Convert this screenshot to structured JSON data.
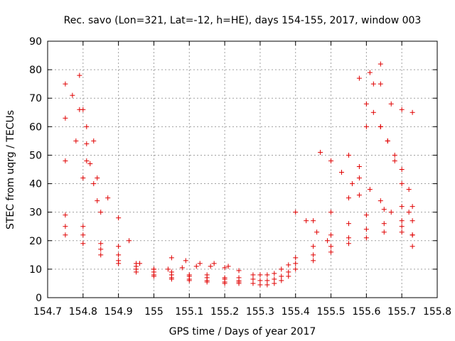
{
  "chart_data": {
    "type": "scatter",
    "title": "Rec. savo (Lon=321, Lat=-12, h=HE), days 154-155, 2017, window 003",
    "xlabel": "GPS time / Days of year 2017",
    "ylabel": "STEC from uqrg / TECUs",
    "xlim": [
      154.7,
      155.8
    ],
    "ylim": [
      0,
      90
    ],
    "xticks": [
      "154.7",
      "154.8",
      "154.9",
      "155",
      "155.1",
      "155.2",
      "155.3",
      "155.4",
      "155.5",
      "155.6",
      "155.7",
      "155.8"
    ],
    "yticks": [
      "0",
      "10",
      "20",
      "30",
      "40",
      "50",
      "60",
      "70",
      "80",
      "90"
    ],
    "grid": true,
    "marker": "plus",
    "color": "#e00000",
    "tracks": [
      {
        "x": [
          154.75,
          154.8,
          154.85,
          154.9,
          154.95,
          155.0,
          155.05,
          155.1,
          155.15,
          155.2,
          155.24
        ],
        "y": [
          22,
          19,
          15,
          12,
          9,
          7.5,
          6.5,
          6,
          5.5,
          5,
          5
        ]
      },
      {
        "x": [
          154.75,
          154.8,
          154.85,
          154.9,
          154.95,
          155.0,
          155.05,
          155.1,
          155.15,
          155.2,
          155.24
        ],
        "y": [
          25,
          22,
          17,
          13,
          10,
          8,
          7,
          6.5,
          6,
          5.5,
          5.5
        ]
      },
      {
        "x": [
          154.75,
          154.8,
          154.85,
          154.9,
          154.95,
          155.0,
          155.05,
          155.1,
          155.15,
          155.2,
          155.24
        ],
        "y": [
          29,
          25,
          19,
          15,
          11,
          9,
          8,
          7.5,
          7,
          6.5,
          6
        ]
      },
      {
        "x": [
          154.75,
          154.8,
          154.85,
          154.9,
          154.95,
          155.0,
          155.05,
          155.1,
          155.15,
          155.2,
          155.24
        ],
        "y": [
          48,
          42,
          30,
          18,
          12,
          10,
          9,
          8,
          8,
          7,
          7
        ]
      },
      {
        "x": [
          154.75,
          154.78,
          154.81,
          154.84,
          154.87,
          154.9,
          154.93,
          154.96
        ],
        "y": [
          63,
          55,
          48,
          42,
          35,
          28,
          20,
          12
        ]
      },
      {
        "x": [
          154.75,
          154.77,
          154.79,
          154.81,
          154.83
        ],
        "y": [
          75,
          71,
          66,
          60,
          55
        ]
      },
      {
        "x": [
          154.79,
          154.8,
          154.81,
          154.82,
          154.83,
          154.84
        ],
        "y": [
          78,
          66,
          54,
          47,
          40,
          34
        ]
      },
      {
        "x": [
          155.0,
          155.04,
          155.08,
          155.12,
          155.16,
          155.2,
          155.24
        ],
        "y": [
          10,
          10,
          10.5,
          11,
          11,
          10.5,
          9.5
        ]
      },
      {
        "x": [
          155.05,
          155.09,
          155.13,
          155.17,
          155.21
        ],
        "y": [
          14,
          13,
          12,
          12,
          11
        ]
      },
      {
        "x": [
          155.28,
          155.3,
          155.32,
          155.34,
          155.36,
          155.38,
          155.4,
          155.45,
          155.5,
          155.55,
          155.6,
          155.65,
          155.7,
          155.73
        ],
        "y": [
          5,
          4.5,
          4.5,
          5,
          6,
          7.5,
          10,
          13,
          16,
          19,
          21,
          23,
          23,
          22
        ]
      },
      {
        "x": [
          155.28,
          155.3,
          155.32,
          155.34,
          155.36,
          155.38,
          155.4,
          155.45,
          155.5,
          155.55,
          155.6,
          155.65,
          155.7,
          155.73
        ],
        "y": [
          6.5,
          6,
          6,
          6.5,
          7.5,
          9,
          12,
          15,
          18,
          21,
          24,
          26,
          27,
          27
        ]
      },
      {
        "x": [
          155.28,
          155.3,
          155.32,
          155.34,
          155.36,
          155.38,
          155.4,
          155.45,
          155.5,
          155.55,
          155.6,
          155.65,
          155.7,
          155.73
        ],
        "y": [
          8,
          8,
          8,
          8.5,
          10,
          11.5,
          14,
          18,
          22,
          26,
          29,
          31,
          32,
          32
        ]
      },
      {
        "x": [
          155.45,
          155.5,
          155.55,
          155.58,
          155.6,
          155.62,
          155.64
        ],
        "y": [
          27,
          30,
          35,
          46,
          60,
          75,
          82
        ]
      },
      {
        "x": [
          155.58,
          155.61,
          155.64,
          155.67,
          155.7,
          155.73
        ],
        "y": [
          77,
          79,
          75,
          68,
          66,
          65
        ]
      },
      {
        "x": [
          155.55,
          155.58,
          155.61,
          155.64,
          155.67,
          155.7,
          155.73
        ],
        "y": [
          50,
          42,
          38,
          34,
          30,
          25,
          22
        ]
      },
      {
        "x": [
          155.64,
          155.66,
          155.68,
          155.7,
          155.72
        ],
        "y": [
          60,
          55,
          50,
          45,
          38
        ]
      },
      {
        "x": [
          155.47,
          155.5,
          155.53,
          155.56,
          155.58
        ],
        "y": [
          51,
          48,
          44,
          40,
          36
        ]
      },
      {
        "x": [
          155.4,
          155.43,
          155.46,
          155.49
        ],
        "y": [
          30,
          27,
          23,
          20
        ]
      },
      {
        "x": [
          155.6,
          155.62,
          155.64,
          155.66,
          155.68,
          155.7,
          155.72,
          155.73
        ],
        "y": [
          68,
          65,
          60,
          55,
          48,
          40,
          30,
          18
        ]
      }
    ]
  }
}
